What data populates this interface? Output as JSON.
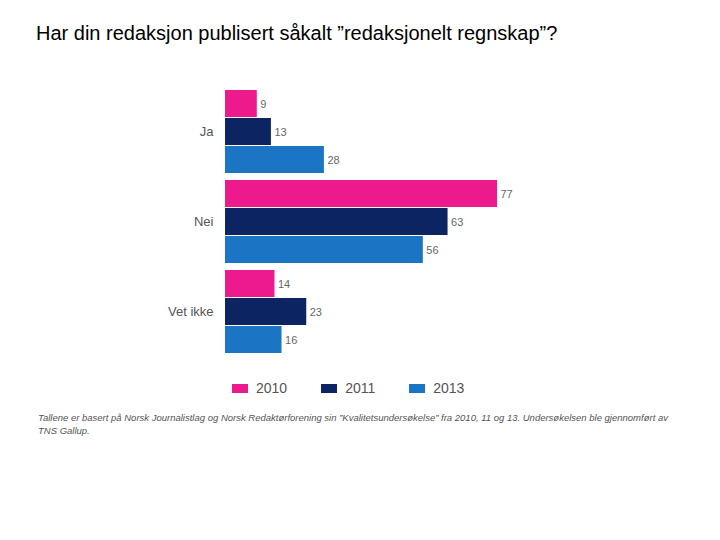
{
  "chart_data": {
    "type": "bar",
    "orientation": "horizontal",
    "title": "Har din redaksjon publisert såkalt ”redaksjonelt regnskap”?",
    "categories": [
      "Ja",
      "Nei",
      "Vet ikke"
    ],
    "series": [
      {
        "name": "2010",
        "color": "#ec1a8c",
        "values": [
          9,
          77,
          14
        ]
      },
      {
        "name": "2011",
        "color": "#0c2461",
        "values": [
          13,
          63,
          23
        ]
      },
      {
        "name": "2013",
        "color": "#1b75c4",
        "values": [
          28,
          56,
          16
        ]
      }
    ],
    "data_labels": true,
    "tick_labels": "y",
    "legend": "bottom",
    "caption": "Tallene er  basert på Norsk Journalistlag og Norsk Redaktørforening sin ”Kvalitetsundersøkelse” fra 2010, 11 og 13. Undersøkelsen ble gjennomført av TNS Gallup."
  }
}
